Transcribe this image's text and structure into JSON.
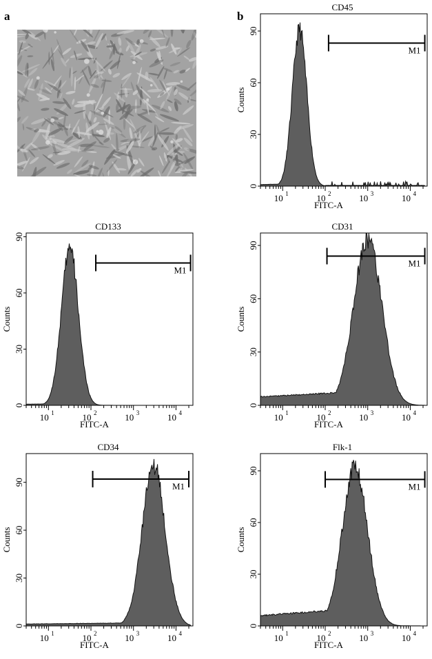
{
  "panel_labels": {
    "a": "a",
    "b": "b"
  },
  "colors": {
    "fill": "#5e5e5e",
    "edge": "#111111",
    "frame": "#000000"
  },
  "chart_data": [
    {
      "type": "area",
      "title": "CD45",
      "xlabel": "FITC-A",
      "ylabel": "Counts",
      "x_scale": "log",
      "xlim": [
        3,
        25000
      ],
      "ylim": [
        0,
        100
      ],
      "x_ticks": [
        "10",
        "10",
        "10",
        "10"
      ],
      "x_tick_exponents": [
        "1",
        "2",
        "3",
        "4"
      ],
      "y_ticks": [
        "0",
        "30",
        "60",
        "90"
      ],
      "gate": {
        "label": "M1",
        "from": 120,
        "to": 22000,
        "y": 83
      },
      "peak_x": 25,
      "peak_y": 91,
      "width_decades": 0.17,
      "baseline": 1.5,
      "spikes": true
    },
    {
      "type": "area",
      "title": "CD133",
      "xlabel": "FITC-A",
      "ylabel": "Counts",
      "x_scale": "log",
      "xlim": [
        3,
        25000
      ],
      "ylim": [
        0,
        92
      ],
      "x_ticks": [
        "10",
        "10",
        "10",
        "10"
      ],
      "x_tick_exponents": [
        "1",
        "2",
        "3",
        "4"
      ],
      "y_ticks": [
        "0",
        "30",
        "60",
        "90"
      ],
      "gate": {
        "label": "M1",
        "from": 130,
        "to": 22000,
        "y": 76
      },
      "peak_x": 32,
      "peak_y": 84,
      "width_decades": 0.2,
      "baseline": 1,
      "spikes": false
    },
    {
      "type": "area",
      "title": "CD31",
      "xlabel": "FITC-A",
      "ylabel": "Counts",
      "x_scale": "log",
      "xlim": [
        3,
        25000
      ],
      "ylim": [
        0,
        97
      ],
      "x_ticks": [
        "10",
        "10",
        "10",
        "10"
      ],
      "x_tick_exponents": [
        "1",
        "2",
        "3",
        "4"
      ],
      "y_ticks": [
        "0",
        "30",
        "60",
        "90"
      ],
      "gate": {
        "label": "M1",
        "from": 110,
        "to": 22000,
        "y": 84
      },
      "peak_x": 1000,
      "peak_y": 94,
      "width_decades": 0.33,
      "baseline": 8,
      "spikes": false
    },
    {
      "type": "area",
      "title": "CD34",
      "xlabel": "FITC-A",
      "ylabel": "Counts",
      "x_scale": "log",
      "xlim": [
        3,
        25000
      ],
      "ylim": [
        0,
        108
      ],
      "x_ticks": [
        "10",
        "10",
        "10",
        "10"
      ],
      "x_tick_exponents": [
        "1",
        "2",
        "3",
        "4"
      ],
      "y_ticks": [
        "0",
        "30",
        "60",
        "90"
      ],
      "gate": {
        "label": "M1",
        "from": 110,
        "to": 20000,
        "y": 92
      },
      "peak_x": 3000,
      "peak_y": 101,
      "width_decades": 0.27,
      "baseline": 2,
      "spikes": false
    },
    {
      "type": "area",
      "title": "Flk-1",
      "xlabel": "FITC-A",
      "ylabel": "Counts",
      "x_scale": "log",
      "xlim": [
        3,
        25000
      ],
      "ylim": [
        0,
        100
      ],
      "x_ticks": [
        "10",
        "10",
        "10",
        "10"
      ],
      "x_tick_exponents": [
        "1",
        "2",
        "3",
        "4"
      ],
      "y_ticks": [
        "0",
        "30",
        "60",
        "90"
      ],
      "gate": {
        "label": "M1",
        "from": 100,
        "to": 22000,
        "y": 85
      },
      "peak_x": 500,
      "peak_y": 92,
      "width_decades": 0.3,
      "baseline": 10,
      "spikes": false
    }
  ]
}
